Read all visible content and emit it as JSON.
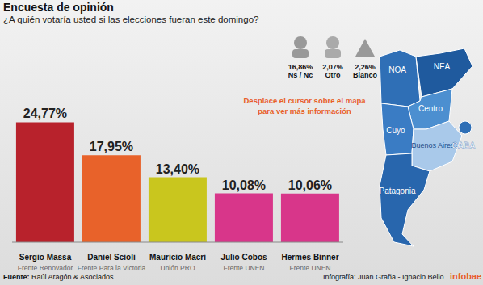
{
  "chart_data": {
    "type": "bar",
    "title": "Encuesta de opinión",
    "subtitle": "¿A quién votaría usted si las elecciones fueran este domingo?",
    "categories": [
      "Sergio Massa",
      "Daniel Scioli",
      "Mauricio Macri",
      "Julio Cobos",
      "Hermes Binner"
    ],
    "parties": [
      "Frente Renovador",
      "Frente Para la Victoria",
      "Unión PRO",
      "Frente UNEN",
      "Frente UNEN"
    ],
    "values": [
      24.77,
      17.95,
      13.4,
      10.08,
      10.06
    ],
    "value_labels": [
      "24,77%",
      "17,95%",
      "13,40%",
      "10,08%",
      "10,06%"
    ],
    "colors": [
      "#b8222c",
      "#e8622a",
      "#c9c61e",
      "#d8368a",
      "#d8368a"
    ],
    "ylim": [
      0,
      30
    ],
    "data_labels": true,
    "tick_labels": "x",
    "grid": false,
    "annotations": [
      "Desplace el cursor sobre el mapa para ver más información"
    ]
  },
  "stats": [
    {
      "label": "16,86%",
      "name": "Ns / Nc"
    },
    {
      "label": "2,07%",
      "name": "Otro"
    },
    {
      "label": "2,26%",
      "name": "Blanco"
    }
  ],
  "map": {
    "regions": [
      "NOA",
      "NEA",
      "Centro",
      "Cuyo",
      "Buenos Aires",
      "Patagonia",
      "CABA"
    ]
  },
  "footer": {
    "source_label": "Fuente:",
    "source": "Raúl Aragón & Asociados",
    "credits": "Infografía: Juan Graña - Ignacio Bello",
    "brand": "infobae"
  }
}
